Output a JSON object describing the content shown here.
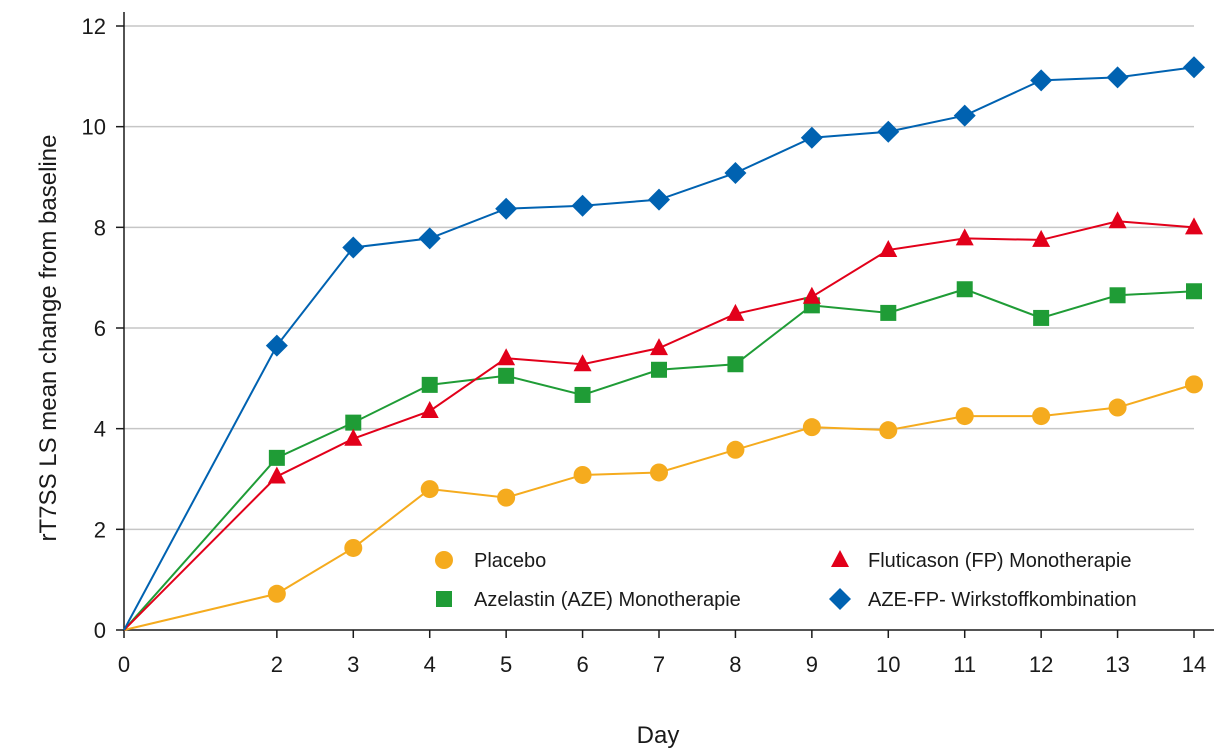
{
  "chart_data": {
    "type": "line",
    "title": "",
    "xlabel": "Day",
    "ylabel": "rT7SS LS mean change from baseline",
    "x": [
      0,
      2,
      3,
      4,
      5,
      6,
      7,
      8,
      9,
      10,
      11,
      12,
      13,
      14
    ],
    "x_ticks": [
      "0",
      "2",
      "3",
      "4",
      "5",
      "6",
      "7",
      "8",
      "9",
      "10",
      "11",
      "12",
      "13",
      "14"
    ],
    "y_ticks": [
      "0",
      "2",
      "4",
      "6",
      "8",
      "10",
      "12"
    ],
    "ylim": [
      0,
      12
    ],
    "grid": true,
    "legend_position": "bottom-right",
    "series": [
      {
        "name": "Placebo",
        "color": "#f5ab1e",
        "marker": "circle",
        "values": [
          0,
          0.72,
          1.63,
          2.8,
          2.63,
          3.08,
          3.13,
          3.58,
          4.03,
          3.97,
          4.25,
          4.25,
          4.42,
          4.88
        ]
      },
      {
        "name": "Azelastin (AZE) Monotherapie",
        "color": "#1f9c36",
        "marker": "square",
        "values": [
          0,
          3.42,
          4.12,
          4.87,
          5.05,
          4.67,
          5.17,
          5.28,
          6.45,
          6.3,
          6.77,
          6.2,
          6.65,
          6.73
        ]
      },
      {
        "name": "Fluticason (FP) Monotherapie",
        "color": "#e2001a",
        "marker": "triangle",
        "values": [
          0,
          3.05,
          3.8,
          4.35,
          5.4,
          5.28,
          5.6,
          6.28,
          6.62,
          7.55,
          7.78,
          7.75,
          8.12,
          8.0
        ]
      },
      {
        "name": "AZE-FP- Wirkstoffkombination",
        "color": "#0062b1",
        "marker": "diamond",
        "values": [
          0,
          5.65,
          7.6,
          7.78,
          8.37,
          8.43,
          8.55,
          9.08,
          9.78,
          9.9,
          10.22,
          10.92,
          10.98,
          11.18
        ]
      }
    ]
  }
}
